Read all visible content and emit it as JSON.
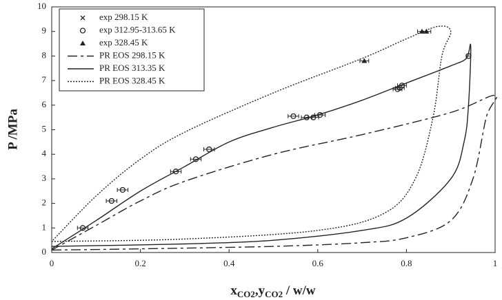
{
  "chart_data": {
    "type": "line",
    "xlabel_parts": [
      "x",
      "CO2",
      ",y",
      "CO2",
      " / w/w"
    ],
    "ylabel": "P /MPa",
    "xlim": [
      0,
      1
    ],
    "xticks": [
      0,
      0.2,
      0.4,
      0.6,
      0.8,
      1
    ],
    "ylim": [
      0,
      10
    ],
    "yticks": [
      0,
      1,
      2,
      3,
      4,
      5,
      6,
      7,
      8,
      9,
      10
    ],
    "legend": "upper left",
    "series": [
      {
        "name": "exp 298.15 K",
        "marker": "cross",
        "color": "#222",
        "x": [],
        "values": [],
        "xerr": []
      },
      {
        "name": "exp 312.95-313.65 K",
        "marker": "circle",
        "color": "#222",
        "x": [
          0.07,
          0.135,
          0.16,
          0.28,
          0.325,
          0.355,
          0.545,
          0.575,
          0.59,
          0.605,
          0.78,
          0.785,
          0.79,
          0.94
        ],
        "values": [
          1.0,
          2.1,
          2.55,
          3.3,
          3.8,
          4.2,
          5.55,
          5.5,
          5.5,
          5.6,
          6.65,
          6.7,
          6.8,
          8.0
        ],
        "xerr": [
          0.012,
          0.012,
          0.012,
          0.012,
          0.012,
          0.012,
          0.012,
          0.012,
          0.012,
          0.012,
          0.01,
          0.01,
          0.01,
          0.005
        ]
      },
      {
        "name": "exp 328.45 K",
        "marker": "triangle",
        "color": "#222",
        "x": [
          0.705,
          0.835,
          0.845
        ],
        "values": [
          7.8,
          9.0,
          9.0
        ],
        "xerr": [
          0.01,
          0.01,
          0.01
        ]
      },
      {
        "name": "PR EOS 298.15 K",
        "style": "dash",
        "color": "#222",
        "x": [
          0,
          0.2,
          0.5,
          0.7,
          0.8,
          0.9,
          0.95,
          0.98,
          1.0,
          0.9,
          0.7,
          0.5,
          0.3,
          0.2,
          0.1,
          0
        ],
        "values": [
          0.1,
          0.15,
          0.25,
          0.4,
          0.6,
          1.3,
          3.0,
          5.5,
          6.4,
          5.7,
          4.8,
          4.0,
          2.9,
          2.1,
          1.1,
          0.1
        ]
      },
      {
        "name": "PR EOS 313.35 K",
        "style": "solid",
        "color": "#222",
        "x": [
          0,
          0.3,
          0.5,
          0.7,
          0.8,
          0.9,
          0.93,
          0.94,
          0.945,
          0.935,
          0.9,
          0.8,
          0.7,
          0.6,
          0.5,
          0.4,
          0.3,
          0.2,
          0.1,
          0
        ],
        "values": [
          0.25,
          0.35,
          0.5,
          0.9,
          1.4,
          3.0,
          4.5,
          6.0,
          8.4,
          7.9,
          7.6,
          6.9,
          6.2,
          5.6,
          5.1,
          4.5,
          3.5,
          2.5,
          1.3,
          0.15
        ]
      },
      {
        "name": "PR EOS 328.45 K",
        "style": "dot",
        "color": "#222",
        "x": [
          0,
          0.3,
          0.6,
          0.75,
          0.82,
          0.86,
          0.88,
          0.9,
          0.87,
          0.8,
          0.7,
          0.5,
          0.3,
          0.2,
          0.1,
          0
        ],
        "values": [
          0.45,
          0.55,
          0.9,
          1.6,
          3.0,
          5.5,
          8.0,
          9.0,
          9.2,
          8.7,
          7.9,
          6.5,
          4.9,
          3.8,
          2.3,
          0.45
        ]
      }
    ]
  }
}
